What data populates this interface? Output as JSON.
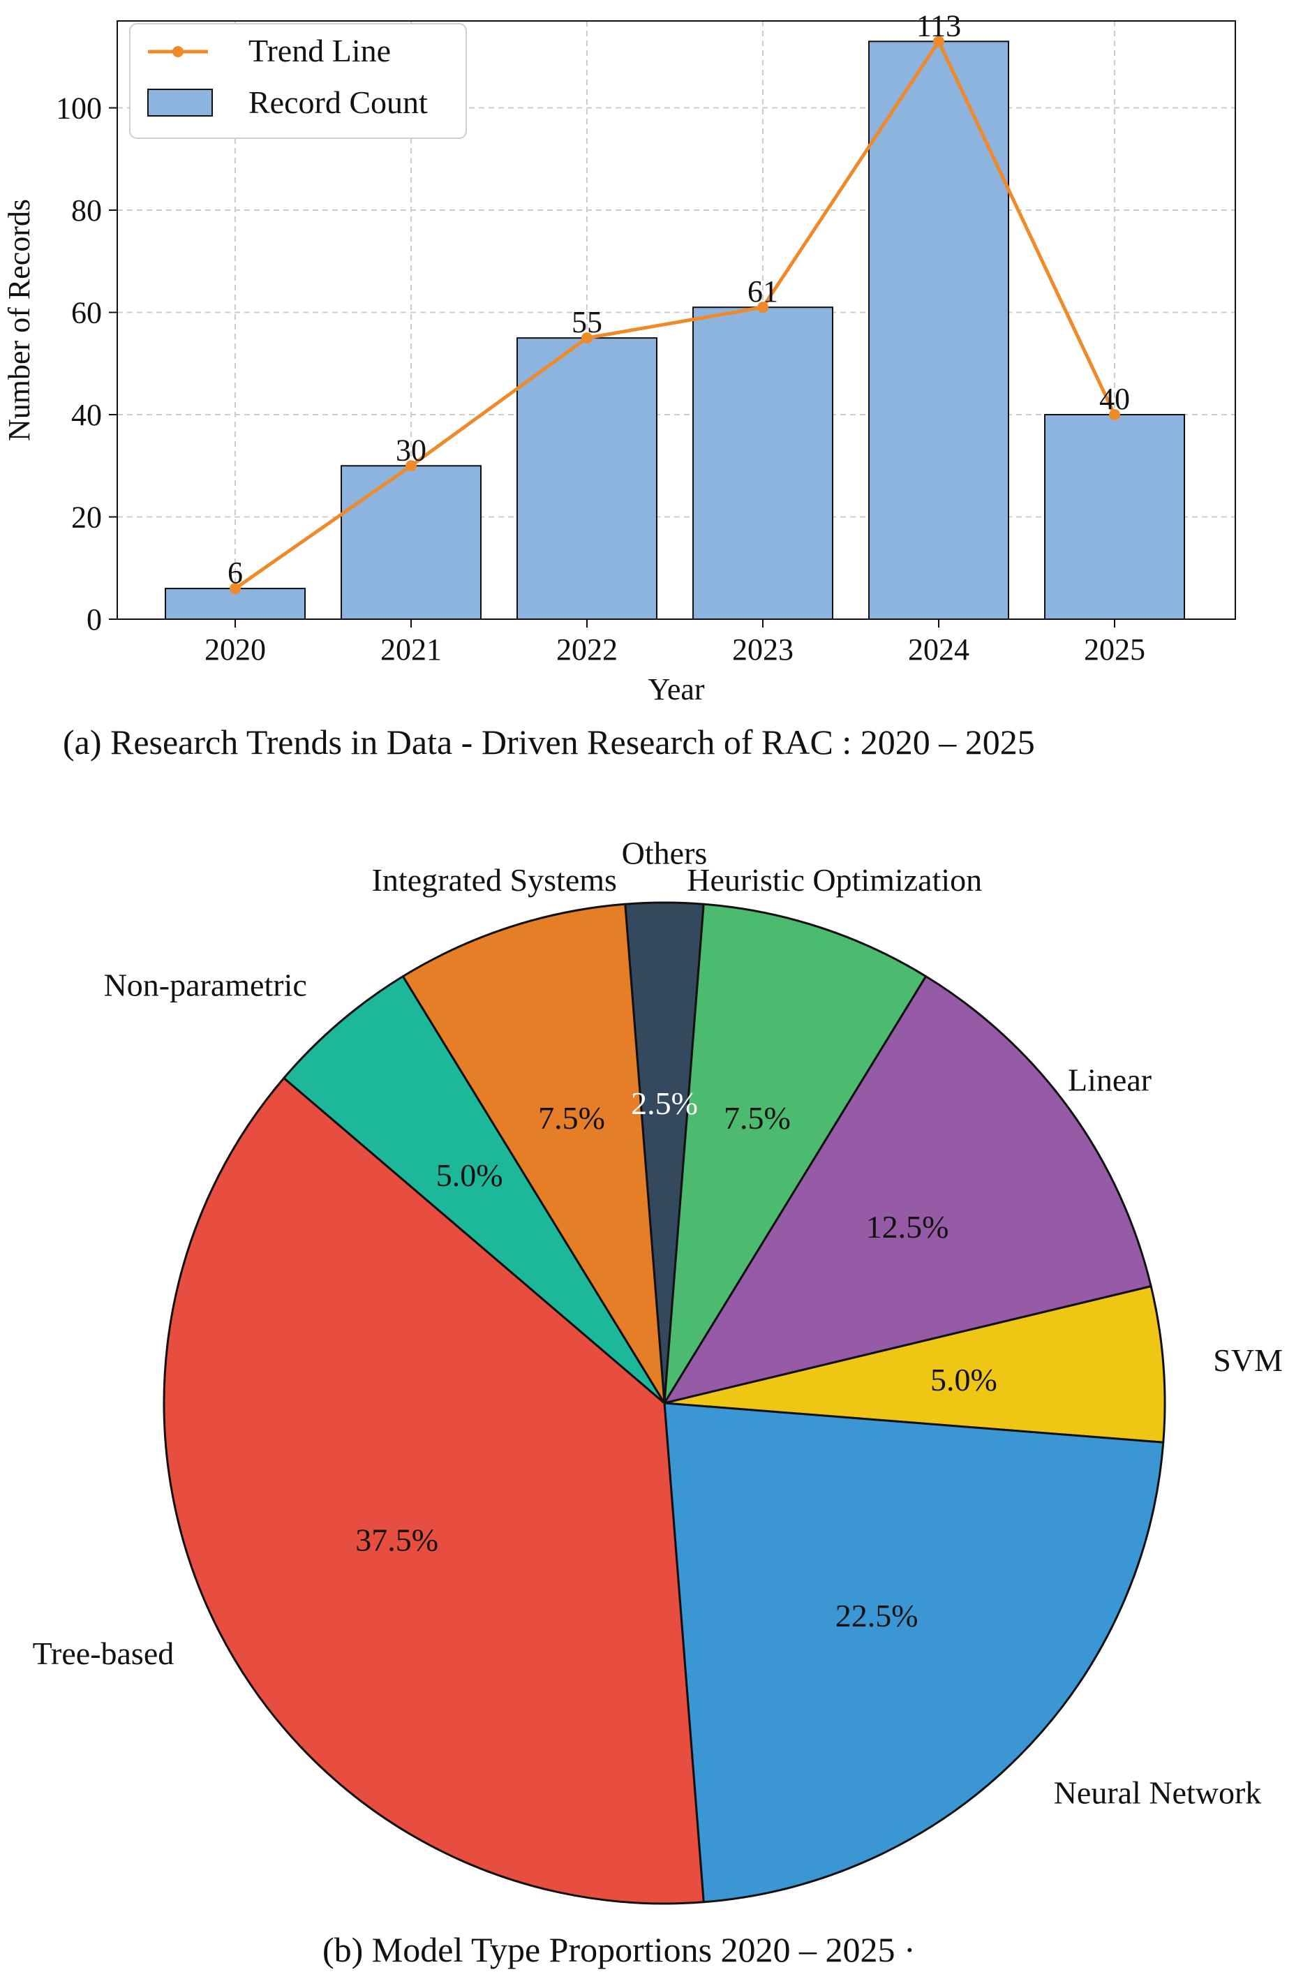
{
  "colors": {
    "bar": "#8db3df",
    "trend": "#ef8a2a",
    "grid": "#cccccc",
    "text": "#111111",
    "white_text": "#ffffff"
  },
  "chart_data": [
    {
      "type": "bar",
      "title": "",
      "caption": "(a)  Research Trends in Data - Driven Research of RAC : 2020 – 2025",
      "xlabel": "Year",
      "ylabel": "Number of Records",
      "categories": [
        "2020",
        "2021",
        "2022",
        "2023",
        "2024",
        "2025"
      ],
      "series": [
        {
          "name": "Record Count",
          "kind": "bar",
          "values": [
            6,
            30,
            55,
            61,
            113,
            40
          ]
        },
        {
          "name": "Trend Line",
          "kind": "line",
          "values": [
            6,
            30,
            55,
            61,
            113,
            40
          ]
        }
      ],
      "data_labels": [
        "6",
        "30",
        "55",
        "61",
        "113",
        "40"
      ],
      "yticks": [
        0,
        20,
        40,
        60,
        80,
        100
      ],
      "ytick_labels": [
        "0",
        "20",
        "40",
        "60",
        "80",
        "100"
      ],
      "ylim": [
        0,
        117
      ],
      "grid": true,
      "legend_position": "top-left",
      "legend": [
        "Trend Line",
        "Record Count"
      ]
    },
    {
      "type": "pie",
      "caption": "(b)  Model Type Proportions    2020 – 2025     ·",
      "start_angle_deg": 94.5,
      "direction": "clockwise",
      "slices": [
        {
          "label": "Others",
          "value": 2.5,
          "pct_label": "2.5%",
          "color": "#34495e",
          "pct_color": "#ffffff"
        },
        {
          "label": "Heuristic Optimization",
          "value": 7.5,
          "pct_label": "7.5%",
          "color": "#4dbb6f",
          "pct_color": "#111111"
        },
        {
          "label": "Linear",
          "value": 12.5,
          "pct_label": "12.5%",
          "color": "#965ba6",
          "pct_color": "#111111"
        },
        {
          "label": "SVM",
          "value": 5.0,
          "pct_label": "5.0%",
          "color": "#f0c614",
          "pct_color": "#111111"
        },
        {
          "label": "Neural Network",
          "value": 22.5,
          "pct_label": "22.5%",
          "color": "#3a97d4",
          "pct_color": "#111111"
        },
        {
          "label": "Tree-based",
          "value": 37.5,
          "pct_label": "37.5%",
          "color": "#e84e3f",
          "pct_color": "#111111"
        },
        {
          "label": "Non-parametric",
          "value": 5.0,
          "pct_label": "5.0%",
          "color": "#1db899",
          "pct_color": "#111111"
        },
        {
          "label": "Integrated Systems",
          "value": 7.5,
          "pct_label": "7.5%",
          "color": "#e57e27",
          "pct_color": "#111111"
        }
      ]
    }
  ]
}
